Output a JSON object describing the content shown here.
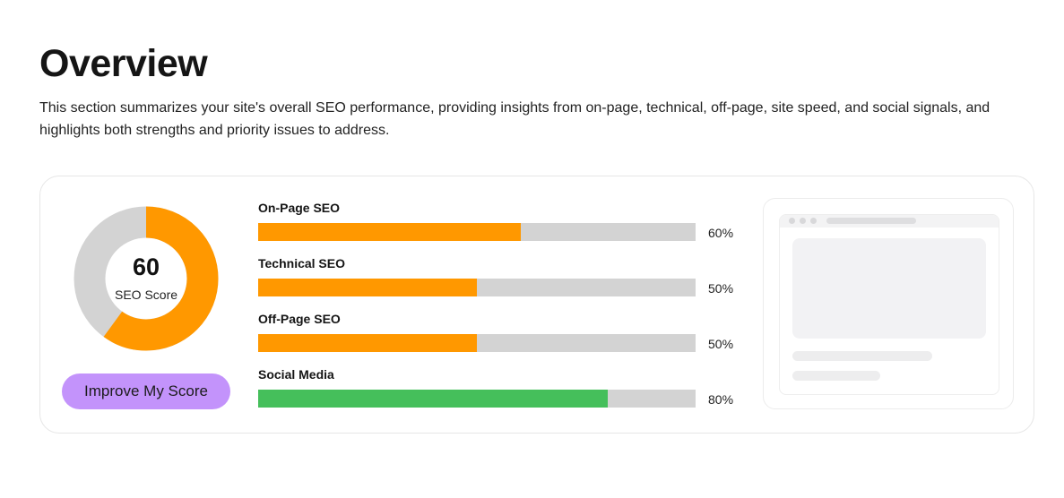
{
  "overview": {
    "title": "Overview",
    "description": "This section summarizes your site's overall SEO performance, providing insights from on-page, technical, off-page, site speed, and social signals, and highlights both strengths and priority issues to address."
  },
  "score": {
    "value": "60",
    "label": "SEO Score",
    "fraction": 0.6,
    "fill_color": "#ff9800",
    "track_color": "#d3d3d3"
  },
  "improve_button": {
    "label": "Improve My Score",
    "color": "#c393fb"
  },
  "metrics": [
    {
      "label": "On-Page SEO",
      "percent": 60,
      "percent_text": "60%",
      "color": "#ff9800"
    },
    {
      "label": "Technical SEO",
      "percent": 50,
      "percent_text": "50%",
      "color": "#ff9800"
    },
    {
      "label": "Off-Page SEO",
      "percent": 50,
      "percent_text": "50%",
      "color": "#ff9800"
    },
    {
      "label": "Social Media",
      "percent": 80,
      "percent_text": "80%",
      "color": "#45bf5b"
    }
  ]
}
